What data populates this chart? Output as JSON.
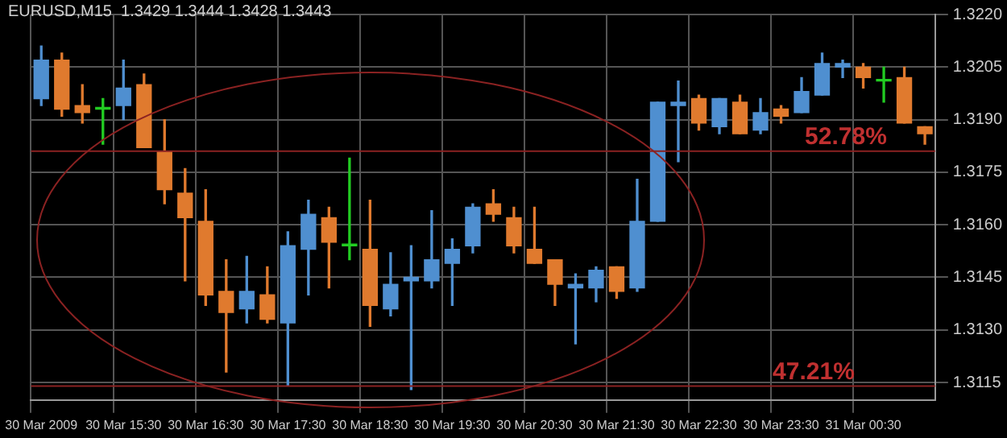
{
  "chart_data": {
    "type": "candlestick",
    "title": "EURUSD,M15  1.3429 1.3444 1.3428 1.3443",
    "categories": [
      "30 Mar 2009",
      null,
      null,
      null,
      "30 Mar 15:30",
      null,
      null,
      null,
      "30 Mar 16:30",
      null,
      null,
      null,
      "30 Mar 17:30",
      null,
      null,
      null,
      "30 Mar 18:30",
      null,
      null,
      null,
      "30 Mar 19:30",
      null,
      null,
      null,
      "30 Mar 20:30",
      null,
      null,
      null,
      "30 Mar 21:30",
      null,
      null,
      null,
      "30 Mar 22:30",
      null,
      null,
      null,
      "30 Mar 23:30",
      null,
      null,
      null,
      "31 Mar 00:30",
      null,
      null,
      null
    ],
    "ohlc": [
      [
        1.3196,
        1.3211,
        1.3194,
        1.3207
      ],
      [
        1.3207,
        1.3209,
        1.3191,
        1.3193
      ],
      [
        1.3194,
        1.32,
        1.3189,
        1.3192
      ],
      [
        1.3193,
        1.3196,
        1.3183,
        1.3193
      ],
      [
        1.3194,
        1.3207,
        1.319,
        1.3199
      ],
      [
        1.32,
        1.3203,
        1.3182,
        1.3182
      ],
      [
        1.3181,
        1.319,
        1.3166,
        1.317
      ],
      [
        1.3169,
        1.3176,
        1.3144,
        1.3162
      ],
      [
        1.3161,
        1.317,
        1.3137,
        1.314
      ],
      [
        1.3141,
        1.315,
        1.3118,
        1.3135
      ],
      [
        1.3136,
        1.3151,
        1.3132,
        1.3141
      ],
      [
        1.314,
        1.3148,
        1.3132,
        1.3133
      ],
      [
        1.3132,
        1.3158,
        1.3114,
        1.3154
      ],
      [
        1.3153,
        1.3167,
        1.314,
        1.3163
      ],
      [
        1.3162,
        1.3165,
        1.3142,
        1.3155
      ],
      [
        1.3154,
        1.3179,
        1.315,
        1.3154
      ],
      [
        1.3153,
        1.3167,
        1.3131,
        1.3137
      ],
      [
        1.3136,
        1.3152,
        1.3134,
        1.3143
      ],
      [
        1.3144,
        1.3154,
        1.3113,
        1.3145
      ],
      [
        1.3144,
        1.3164,
        1.3142,
        1.315
      ],
      [
        1.3149,
        1.3156,
        1.3137,
        1.3153
      ],
      [
        1.3154,
        1.3166,
        1.3152,
        1.3165
      ],
      [
        1.3166,
        1.317,
        1.3161,
        1.3163
      ],
      [
        1.3162,
        1.3165,
        1.3152,
        1.3154
      ],
      [
        1.3153,
        1.3165,
        1.3149,
        1.3149
      ],
      [
        1.315,
        1.315,
        1.3137,
        1.3143
      ],
      [
        1.3142,
        1.3146,
        1.3126,
        1.3143
      ],
      [
        1.3142,
        1.3148,
        1.3138,
        1.3147
      ],
      [
        1.3148,
        1.3148,
        1.3139,
        1.3141
      ],
      [
        1.3142,
        1.3173,
        1.3141,
        1.3161
      ],
      [
        1.3161,
        1.3195,
        1.3161,
        1.3195
      ],
      [
        1.3194,
        1.3201,
        1.3178,
        1.3195
      ],
      [
        1.3196,
        1.3197,
        1.3187,
        1.3189
      ],
      [
        1.3188,
        1.3196,
        1.3186,
        1.3196
      ],
      [
        1.3195,
        1.3197,
        1.3186,
        1.3186
      ],
      [
        1.3187,
        1.3196,
        1.3186,
        1.3192
      ],
      [
        1.3193,
        1.3194,
        1.3189,
        1.3191
      ],
      [
        1.3192,
        1.3202,
        1.3192,
        1.3198
      ],
      [
        1.3197,
        1.3209,
        1.3197,
        1.3206
      ],
      [
        1.3205,
        1.3207,
        1.3202,
        1.3206
      ],
      [
        1.3205,
        1.3206,
        1.3199,
        1.3202
      ],
      [
        1.3201,
        1.3205,
        1.3195,
        1.3201
      ],
      [
        1.3202,
        1.3205,
        1.3189,
        1.3189
      ],
      [
        1.3188,
        1.3188,
        1.3183,
        1.3186
      ]
    ],
    "colors": [
      "#4f8fd0",
      "#e07a2e",
      "#e07a2e",
      "#22cc22",
      "#4f8fd0",
      "#e07a2e",
      "#e07a2e",
      "#e07a2e",
      "#e07a2e",
      "#e07a2e",
      "#4f8fd0",
      "#e07a2e",
      "#4f8fd0",
      "#4f8fd0",
      "#e07a2e",
      "#22cc22",
      "#e07a2e",
      "#4f8fd0",
      "#4f8fd0",
      "#4f8fd0",
      "#4f8fd0",
      "#4f8fd0",
      "#e07a2e",
      "#e07a2e",
      "#e07a2e",
      "#e07a2e",
      "#4f8fd0",
      "#4f8fd0",
      "#e07a2e",
      "#4f8fd0",
      "#4f8fd0",
      "#4f8fd0",
      "#e07a2e",
      "#4f8fd0",
      "#e07a2e",
      "#4f8fd0",
      "#e07a2e",
      "#4f8fd0",
      "#4f8fd0",
      "#4f8fd0",
      "#e07a2e",
      "#22cc22",
      "#e07a2e",
      "#e07a2e"
    ],
    "ylim": [
      1.311,
      1.322
    ],
    "yticks": [
      {
        "value": 1.322,
        "label": "1.3220"
      },
      1.3205,
      {
        "value": 1.319,
        "label": "1.3190"
      },
      1.3175,
      {
        "value": 1.316,
        "label": "1.3160"
      },
      1.3145,
      {
        "value": 1.313,
        "label": "1.3130"
      },
      1.3115
    ],
    "ref_lines": [
      {
        "axis": "y",
        "value": 1.3181,
        "color": "#8b2222"
      },
      {
        "axis": "y",
        "value": 1.3114,
        "color": "#8b2222"
      }
    ],
    "annotations": [
      {
        "text": "52.78%",
        "y": 1.3181
      },
      {
        "text": "47.21%",
        "y": 1.3114
      }
    ],
    "grid": true,
    "legend": false
  }
}
